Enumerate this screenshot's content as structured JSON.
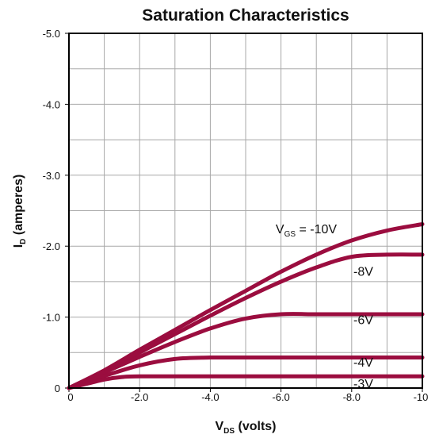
{
  "chart_data": {
    "type": "line",
    "title": "Saturation Characteristics",
    "xlabel": {
      "main": "V",
      "sub": "DS",
      "suffix": " (volts)"
    },
    "ylabel": {
      "main": "I",
      "sub": "D",
      "suffix": " (amperes)"
    },
    "xlim": [
      0,
      -10
    ],
    "ylim": [
      0,
      -5
    ],
    "x_ticks": [
      {
        "value": 0,
        "label": "0"
      },
      {
        "value": -2,
        "label": "-2.0"
      },
      {
        "value": -4,
        "label": "-4.0"
      },
      {
        "value": -6,
        "label": "-6.0"
      },
      {
        "value": -8,
        "label": "-8.0"
      },
      {
        "value": -10,
        "label": "-10"
      }
    ],
    "y_ticks": [
      {
        "value": 0,
        "label": "0"
      },
      {
        "value": -1,
        "label": "-1.0"
      },
      {
        "value": -2,
        "label": "-2.0"
      },
      {
        "value": -3,
        "label": "-3.0"
      },
      {
        "value": -4,
        "label": "-4.0"
      },
      {
        "value": -5,
        "label": "-5.0"
      }
    ],
    "grid": true,
    "grid_minor_step": {
      "x": 1,
      "y": 0.5
    },
    "line_color": "#9b0d3f",
    "series": [
      {
        "label_main": "V",
        "label_sub": "GS",
        "label_suffix": " = -10V",
        "points": [
          [
            0,
            0
          ],
          [
            -1,
            -0.25
          ],
          [
            -2,
            -0.54
          ],
          [
            -3,
            -0.82
          ],
          [
            -4,
            -1.1
          ],
          [
            -5,
            -1.37
          ],
          [
            -6,
            -1.64
          ],
          [
            -7,
            -1.88
          ],
          [
            -8,
            -2.08
          ],
          [
            -9,
            -2.22
          ],
          [
            -10,
            -2.31
          ]
        ]
      },
      {
        "label_main": "-8V",
        "points": [
          [
            0,
            0
          ],
          [
            -1,
            -0.24
          ],
          [
            -2,
            -0.5
          ],
          [
            -3,
            -0.76
          ],
          [
            -4,
            -1.02
          ],
          [
            -5,
            -1.27
          ],
          [
            -6,
            -1.5
          ],
          [
            -7,
            -1.7
          ],
          [
            -8,
            -1.85
          ],
          [
            -9,
            -1.88
          ],
          [
            -10,
            -1.88
          ]
        ]
      },
      {
        "label_main": "-6V",
        "points": [
          [
            0,
            0
          ],
          [
            -1,
            -0.22
          ],
          [
            -2,
            -0.44
          ],
          [
            -3,
            -0.65
          ],
          [
            -4,
            -0.84
          ],
          [
            -5,
            -0.98
          ],
          [
            -6,
            -1.04
          ],
          [
            -7,
            -1.04
          ],
          [
            -8,
            -1.04
          ],
          [
            -9,
            -1.04
          ],
          [
            -10,
            -1.04
          ]
        ]
      },
      {
        "label_main": "-4V",
        "points": [
          [
            0,
            0
          ],
          [
            -1,
            -0.17
          ],
          [
            -2,
            -0.32
          ],
          [
            -3,
            -0.41
          ],
          [
            -4,
            -0.43
          ],
          [
            -5,
            -0.43
          ],
          [
            -6,
            -0.43
          ],
          [
            -7,
            -0.43
          ],
          [
            -8,
            -0.43
          ],
          [
            -9,
            -0.43
          ],
          [
            -10,
            -0.43
          ]
        ]
      },
      {
        "label_main": "-3V",
        "points": [
          [
            0,
            0
          ],
          [
            -0.5,
            -0.06
          ],
          [
            -1,
            -0.12
          ],
          [
            -1.5,
            -0.155
          ],
          [
            -2,
            -0.165
          ],
          [
            -4,
            -0.165
          ],
          [
            -6,
            -0.165
          ],
          [
            -8,
            -0.165
          ],
          [
            -10,
            -0.165
          ]
        ]
      }
    ]
  }
}
